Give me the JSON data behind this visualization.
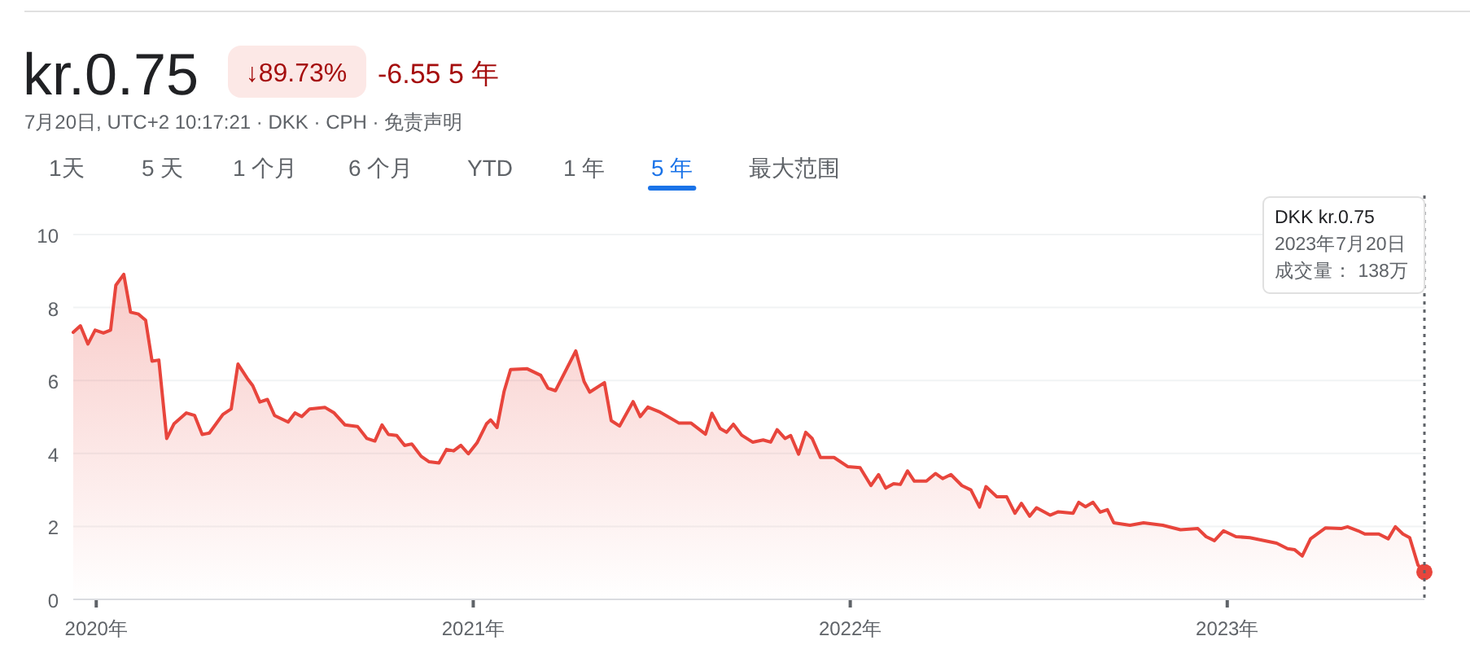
{
  "chart_data": {
    "type": "area",
    "title": "kr.0.75",
    "subtitle": "7月20日, UTC+2 10:17:21 · DKK · CPH · 免责声明",
    "annotations": [
      "↓89.73%",
      "-6.55 5 年",
      "1天",
      "5 天",
      "1 个月",
      "6 个月",
      "YTD",
      "1 年",
      "5 年",
      "最大范围",
      "DKK kr.0.75",
      "2023年7月20日",
      "成交量： 138万"
    ],
    "x": [
      2019.939,
      2019.958,
      2019.978,
      2019.997,
      2020.019,
      2020.038,
      2020.052,
      2020.073,
      2020.091,
      2020.112,
      2020.131,
      2020.148,
      2020.166,
      2020.187,
      2020.206,
      2020.239,
      2020.261,
      2020.281,
      2020.3,
      2020.336,
      2020.358,
      2020.376,
      2020.401,
      2020.415,
      2020.434,
      2020.454,
      2020.473,
      2020.509,
      2020.527,
      2020.545,
      2020.566,
      2020.607,
      2020.631,
      2020.66,
      2020.693,
      2020.718,
      2020.739,
      2020.758,
      2020.775,
      2020.797,
      2020.818,
      2020.837,
      2020.862,
      2020.883,
      2020.909,
      2020.929,
      2020.948,
      2020.967,
      2020.987,
      2021.01,
      2021.035,
      2021.046,
      2021.063,
      2021.082,
      2021.099,
      2021.143,
      2021.179,
      2021.198,
      2021.218,
      2021.272,
      2021.294,
      2021.309,
      2021.348,
      2021.366,
      2021.388,
      2021.424,
      2021.443,
      2021.463,
      2021.496,
      2021.546,
      2021.578,
      2021.616,
      2021.633,
      2021.655,
      2021.672,
      2021.69,
      2021.712,
      2021.741,
      2021.769,
      2021.789,
      2021.806,
      2021.827,
      2021.842,
      2021.863,
      2021.882,
      2021.899,
      2021.921,
      2021.957,
      2021.993,
      2022.026,
      2022.055,
      2022.075,
      2022.094,
      2022.115,
      2022.133,
      2022.152,
      2022.17,
      2022.202,
      2022.226,
      2022.245,
      2022.267,
      2022.296,
      2022.32,
      2022.343,
      2022.36,
      2022.389,
      2022.415,
      2022.437,
      2022.454,
      2022.476,
      2022.494,
      2022.53,
      2022.552,
      2022.591,
      2022.606,
      2022.624,
      2022.644,
      2022.663,
      2022.682,
      2022.699,
      2022.742,
      2022.778,
      2022.829,
      2022.876,
      2022.922,
      2022.944,
      2022.966,
      2022.99,
      2023.023,
      2023.06,
      2023.131,
      2023.16,
      2023.179,
      2023.199,
      2023.221,
      2023.261,
      2023.302,
      2023.319,
      2023.347,
      2023.365,
      2023.402,
      2023.427,
      2023.446,
      2023.466,
      2023.484,
      2023.506,
      2023.523
    ],
    "series": [
      {
        "color": "#e8453c",
        "values": [
          7.32,
          7.5,
          7.0,
          7.38,
          7.3,
          7.38,
          8.61,
          8.91,
          7.87,
          7.82,
          7.65,
          6.53,
          6.56,
          4.41,
          4.81,
          5.11,
          5.04,
          4.52,
          4.56,
          5.07,
          5.22,
          6.45,
          6.05,
          5.86,
          5.41,
          5.48,
          5.04,
          4.86,
          5.11,
          5.01,
          5.22,
          5.26,
          5.11,
          4.78,
          4.74,
          4.41,
          4.34,
          4.78,
          4.52,
          4.49,
          4.22,
          4.26,
          3.92,
          3.77,
          3.74,
          4.11,
          4.07,
          4.22,
          3.99,
          4.29,
          4.81,
          4.92,
          4.71,
          5.71,
          6.3,
          6.32,
          6.14,
          5.79,
          5.72,
          6.81,
          5.97,
          5.68,
          5.94,
          4.9,
          4.75,
          5.42,
          5.01,
          5.27,
          5.13,
          4.83,
          4.83,
          4.53,
          5.1,
          4.68,
          4.58,
          4.8,
          4.5,
          4.31,
          4.37,
          4.31,
          4.65,
          4.41,
          4.49,
          3.98,
          4.58,
          4.41,
          3.89,
          3.89,
          3.64,
          3.61,
          3.12,
          3.42,
          3.05,
          3.17,
          3.15,
          3.52,
          3.24,
          3.24,
          3.45,
          3.31,
          3.42,
          3.12,
          3.0,
          2.53,
          3.09,
          2.81,
          2.81,
          2.36,
          2.63,
          2.28,
          2.51,
          2.31,
          2.4,
          2.36,
          2.66,
          2.54,
          2.66,
          2.39,
          2.46,
          2.1,
          2.03,
          2.1,
          2.03,
          1.91,
          1.94,
          1.72,
          1.61,
          1.88,
          1.72,
          1.69,
          1.54,
          1.39,
          1.36,
          1.19,
          1.66,
          1.96,
          1.94,
          1.99,
          1.88,
          1.79,
          1.79,
          1.66,
          1.99,
          1.79,
          1.69,
          0.94,
          0.75
        ]
      }
    ],
    "xlim": [
      2019.939,
      2023.523
    ],
    "ylim": [
      0,
      10
    ],
    "xticks": [
      {
        "value": 2020,
        "label": "2020年"
      },
      {
        "value": 2021,
        "label": "2021年"
      },
      {
        "value": 2022,
        "label": "2022年"
      },
      {
        "value": 2023,
        "label": "2023年"
      }
    ],
    "yticks": [
      0,
      2,
      4,
      6,
      8,
      10
    ],
    "grid": "y",
    "ref_lines": [
      {
        "axis": "x",
        "value": 2023.523,
        "color": "#5f6368",
        "line_style": "dotted"
      }
    ]
  }
}
